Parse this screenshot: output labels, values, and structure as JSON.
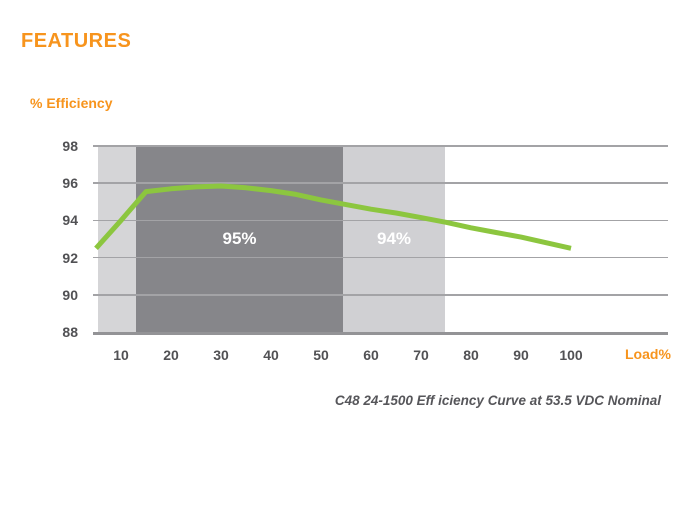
{
  "header": {
    "title": "FEATURES"
  },
  "chart_data": {
    "type": "line",
    "title": "C48 24-1500 Eff iciency Curve at 53.5 VDC Nominal",
    "xlabel": "Load%",
    "ylabel": "% Efficiency",
    "x": [
      5,
      10,
      15,
      20,
      25,
      30,
      35,
      40,
      45,
      50,
      55,
      60,
      65,
      70,
      75,
      80,
      85,
      90,
      95,
      100
    ],
    "series": [
      {
        "name": "Efficiency",
        "color": "#8CC63F",
        "values": [
          92.5,
          94.0,
          95.55,
          95.7,
          95.8,
          95.85,
          95.75,
          95.6,
          95.4,
          95.1,
          94.85,
          94.6,
          94.4,
          94.15,
          93.9,
          93.6,
          93.35,
          93.1,
          92.8,
          92.5
        ]
      }
    ],
    "x_ticks": [
      10,
      20,
      30,
      40,
      50,
      60,
      70,
      80,
      90,
      100
    ],
    "y_ticks": [
      98,
      96,
      94,
      92,
      90,
      88
    ],
    "ylim": [
      88,
      98
    ],
    "grid": true,
    "legend": "none",
    "bands": [
      {
        "label": "",
        "from": 5.4,
        "to": 13,
        "color": "#D5D5D7"
      },
      {
        "label": "95%",
        "from": 13,
        "to": 54.4,
        "color": "#86868A"
      },
      {
        "label": "94%",
        "from": 54.4,
        "to": 74.8,
        "color": "#D0D0D3"
      }
    ]
  },
  "colors": {
    "accent_orange": "#F7941D",
    "line_green": "#8CC63F",
    "band_dark_gray": "#86868A",
    "band_light_gray": "#D0D0D3",
    "grid_gray": "#A3A3A6",
    "text_gray": "#515154",
    "caption_gray": "#56565A"
  }
}
